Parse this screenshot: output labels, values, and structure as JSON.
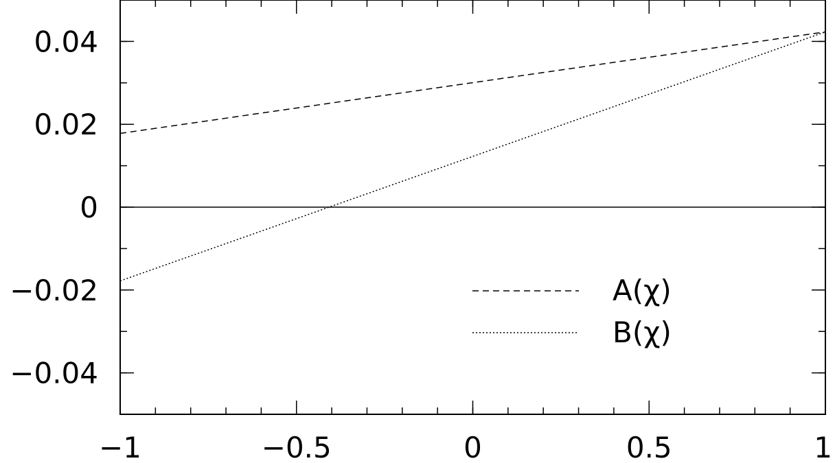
{
  "chart_data": {
    "type": "line",
    "title": "",
    "xlabel": "",
    "ylabel": "",
    "xlim": [
      -1,
      1
    ],
    "ylim": [
      -0.05,
      0.05
    ],
    "grid": false,
    "legend_position": "bottom-right",
    "x_ticks": [
      {
        "value": -1,
        "label": "−1"
      },
      {
        "value": -0.5,
        "label": "−0.5"
      },
      {
        "value": 0,
        "label": "0"
      },
      {
        "value": 0.5,
        "label": "0.5"
      },
      {
        "value": 1,
        "label": "1"
      }
    ],
    "y_ticks": [
      {
        "value": 0.04,
        "label": "0.04"
      },
      {
        "value": 0.02,
        "label": "0.02"
      },
      {
        "value": 0,
        "label": "0"
      },
      {
        "value": -0.02,
        "label": "−0.02"
      },
      {
        "value": -0.04,
        "label": "−0.04"
      }
    ],
    "x_minor_step": 0.1,
    "y_minor_step": 0.01,
    "reference_line": {
      "y": 0,
      "style": "solid"
    },
    "series": [
      {
        "name": "A(χ)",
        "style": "dashed",
        "x": [
          -1,
          1
        ],
        "y": [
          0.0178,
          0.0423
        ]
      },
      {
        "name": "B(χ)",
        "style": "dotted",
        "x": [
          -1,
          1
        ],
        "y": [
          -0.0178,
          0.0423
        ]
      }
    ]
  }
}
